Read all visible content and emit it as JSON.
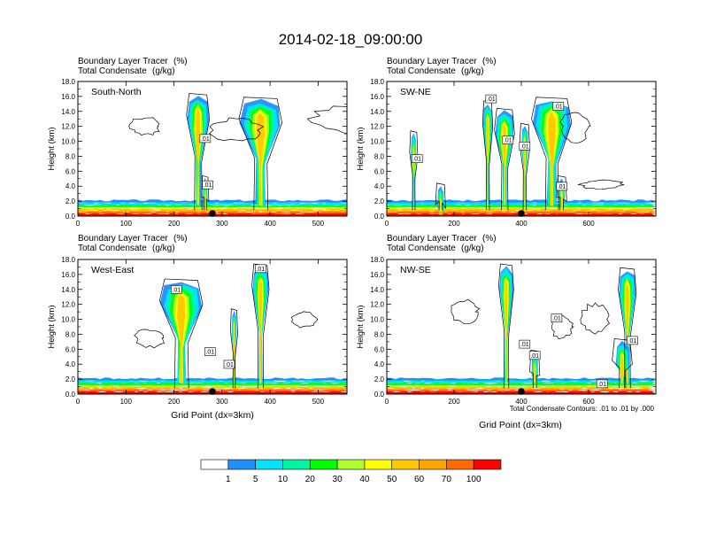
{
  "title": "2014-02-18_09:00:00",
  "chart_data": {
    "type": "heatmap",
    "variable_title": "Boundary Layer Tracer",
    "variable_units": "(%)",
    "contour_title": "Total Condensate",
    "contour_units": "(g/kg)",
    "ylabel": "Height (km)",
    "xlabel": "Grid Point (dx=3km)",
    "ylim": [
      0,
      18
    ],
    "yticks": [
      "0.0",
      "2.0",
      "4.0",
      "6.0",
      "8.0",
      "10.0",
      "12.0",
      "14.0",
      "16.0",
      "18.0"
    ],
    "contour_note": "Total Condensate Contours: .01 to .01 by .000",
    "colorbar": {
      "levels": [
        "1",
        "5",
        "10",
        "20",
        "30",
        "40",
        "50",
        "60",
        "70",
        "100"
      ],
      "colors": [
        "#ffffff",
        "#1e90ff",
        "#00e5ff",
        "#00f5a0",
        "#00ff00",
        "#adff2f",
        "#ffff00",
        "#ffc800",
        "#ffa500",
        "#ff6a00",
        "#ff0000"
      ]
    },
    "panels": [
      {
        "name": "South-North",
        "xmax": 560,
        "xticks": [
          0,
          100,
          200,
          300,
          400,
          500
        ],
        "marker_x": 280,
        "contour_labels": [
          ".01",
          ".01"
        ]
      },
      {
        "name": "SW-NE",
        "xmax": 800,
        "xticks": [
          0,
          200,
          400,
          600
        ],
        "marker_x": 400,
        "contour_labels": [
          ".01",
          ".01",
          ".01",
          ".01",
          ".01",
          ".01"
        ]
      },
      {
        "name": "West-East",
        "xmax": 560,
        "xticks": [
          0,
          100,
          200,
          300,
          400,
          500
        ],
        "marker_x": 280,
        "contour_labels": [
          ".01",
          ".01",
          ".01",
          ".01"
        ]
      },
      {
        "name": "NW-SE",
        "xmax": 800,
        "xticks": [
          0,
          200,
          400,
          600
        ],
        "marker_x": 400,
        "contour_labels": [
          ".01",
          ".01",
          ".01",
          ".01",
          ".01"
        ]
      }
    ]
  }
}
